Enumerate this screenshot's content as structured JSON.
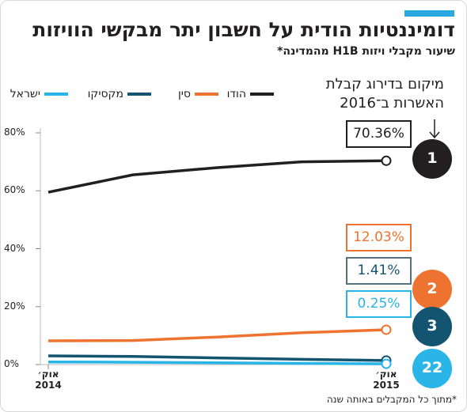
{
  "chart_data": {
    "type": "line",
    "title": "דומיננטיות הודית על חשבון יתר מבקשי הוויזות",
    "subtitle": "שיעור מקבלי ויזות H1B מהמדינה*",
    "annotation": "מיקום בדירוג קבלת\nהאשרות ב־2016",
    "footnote": "*מתוך כל המקבלים באותה שנה",
    "categories": [
      "אוק׳\n2014",
      null,
      null,
      null,
      "אוק׳\n2015"
    ],
    "ylim": [
      0,
      80
    ],
    "yticks": [
      {
        "value": 0,
        "label": "0%"
      },
      {
        "value": 20,
        "label": "20%"
      },
      {
        "value": 40,
        "label": "40%"
      },
      {
        "value": 60,
        "label": "60%"
      },
      {
        "value": 80,
        "label": "80%"
      }
    ],
    "series": [
      {
        "name": "הודו",
        "color": "#231f20",
        "rank": 1,
        "values": [
          59.5,
          65.5,
          68,
          70,
          70.36
        ],
        "value_labels": [
          null,
          null,
          null,
          null,
          "70.36%"
        ]
      },
      {
        "name": "סין",
        "color": "#ee7330",
        "rank": 2,
        "values": [
          8.2,
          8.3,
          9.5,
          11,
          12.03
        ],
        "value_labels": [
          null,
          null,
          null,
          null,
          "12.03%"
        ]
      },
      {
        "name": "מקסיקו",
        "color": "#135571",
        "rank": 3,
        "values": [
          3,
          2.8,
          2.3,
          1.8,
          1.41
        ],
        "value_labels": [
          null,
          null,
          null,
          null,
          "1.41%"
        ]
      },
      {
        "name": "ישראל",
        "color": "#29b5e8",
        "rank": 22,
        "values": [
          0.9,
          0.8,
          0.6,
          0.4,
          0.25
        ],
        "value_labels": [
          null,
          null,
          null,
          null,
          "0.25%"
        ]
      }
    ]
  }
}
